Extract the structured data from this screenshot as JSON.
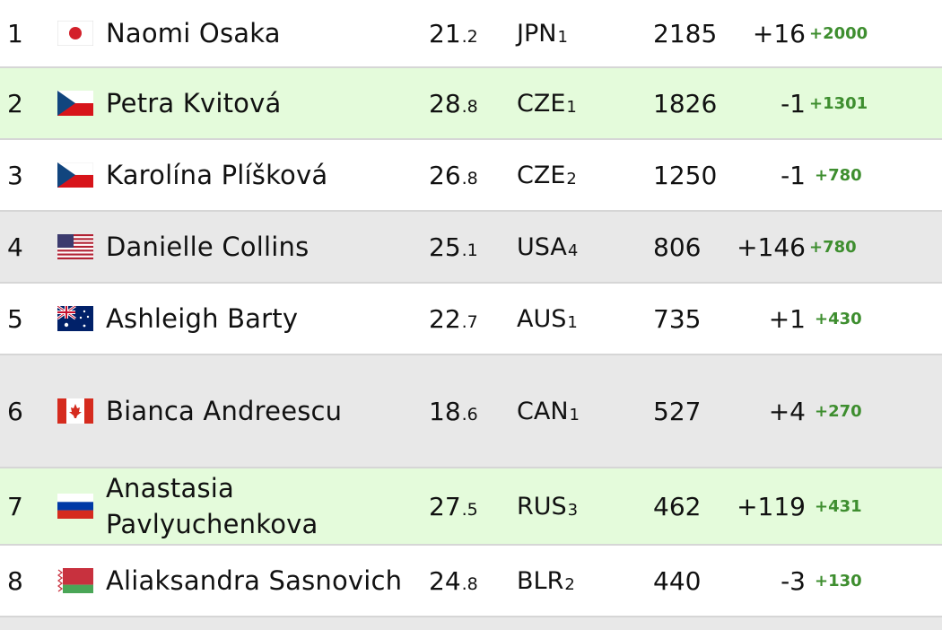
{
  "rows": [
    {
      "rank": "1",
      "flag": "jpn-flag-icon",
      "name": "Naomi Osaka",
      "age_int": "21",
      "age_dec": ".2",
      "country": "JPN",
      "country_rank": "1",
      "points": "2185",
      "change": "+16",
      "gain": "+2000",
      "style": "white"
    },
    {
      "rank": "2",
      "flag": "cze-flag-icon",
      "name": "Petra Kvitová",
      "age_int": "28",
      "age_dec": ".8",
      "country": "CZE",
      "country_rank": "1",
      "points": "1826",
      "change": "-1",
      "gain": "+1301",
      "style": "green"
    },
    {
      "rank": "3",
      "flag": "cze-flag-icon",
      "name": "Karolína Plíšková",
      "age_int": "26",
      "age_dec": ".8",
      "country": "CZE",
      "country_rank": "2",
      "points": "1250",
      "change": "-1",
      "gain": "+780",
      "style": "white"
    },
    {
      "rank": "4",
      "flag": "usa-flag-icon",
      "name": "Danielle Collins",
      "age_int": "25",
      "age_dec": ".1",
      "country": "USA",
      "country_rank": "4",
      "points": "806",
      "change": "+146",
      "gain": "+780",
      "style": "grey"
    },
    {
      "rank": "5",
      "flag": "aus-flag-icon",
      "name": "Ashleigh Barty",
      "age_int": "22",
      "age_dec": ".7",
      "country": "AUS",
      "country_rank": "1",
      "points": "735",
      "change": "+1",
      "gain": "+430",
      "style": "white"
    },
    {
      "rank": "6",
      "flag": "can-flag-icon",
      "name": "Bianca Andreescu",
      "age_int": "18",
      "age_dec": ".6",
      "country": "CAN",
      "country_rank": "1",
      "points": "527",
      "change": "+4",
      "gain": "+270",
      "style": "grey"
    },
    {
      "rank": "7",
      "flag": "rus-flag-icon",
      "name_line1": "Anastasia",
      "name_line2": "Pavlyuchenkova",
      "age_int": "27",
      "age_dec": ".5",
      "country": "RUS",
      "country_rank": "3",
      "points": "462",
      "change": "+119",
      "gain": "+431",
      "style": "green"
    },
    {
      "rank": "8",
      "flag": "blr-flag-icon",
      "name": "Aliaksandra Sasnovich",
      "age_int": "24",
      "age_dec": ".8",
      "country": "BLR",
      "country_rank": "2",
      "points": "440",
      "change": "-3",
      "gain": "+130",
      "style": "white"
    }
  ]
}
